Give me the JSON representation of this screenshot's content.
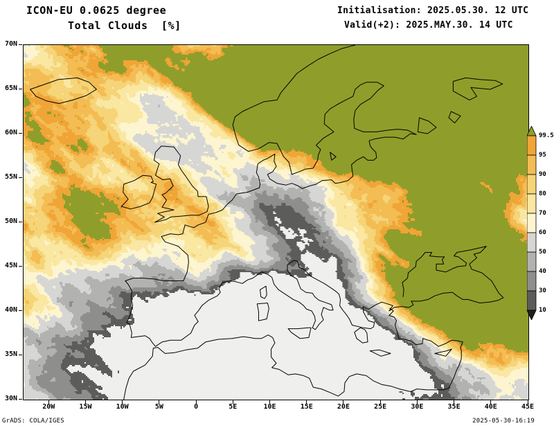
{
  "header": {
    "model_line": "ICON-EU 0.0625 degree",
    "product_line": "Total Clouds  [%]",
    "init_line": "Initialisation: 2025.05.30. 12 UTC",
    "valid_line": "Valid(+2): 2025.MAY.30. 14 UTC"
  },
  "map": {
    "lon_range": [
      -23.5,
      45
    ],
    "lat_range": [
      30,
      70
    ],
    "x_tick_labels": [
      "20W",
      "15W",
      "10W",
      "5W",
      "0",
      "5E",
      "10E",
      "15E",
      "20E",
      "25E",
      "30E",
      "35E",
      "40E",
      "45E"
    ],
    "y_tick_labels": [
      "70N",
      "65N",
      "60N",
      "55N",
      "50N",
      "45N",
      "40N",
      "35N",
      "30N"
    ]
  },
  "legend": {
    "tick_labels": [
      "99.5",
      "95",
      "90",
      "80",
      "70",
      "60",
      "50",
      "40",
      "30",
      "10"
    ],
    "colors": [
      "#8f9e2a",
      "#f0a537",
      "#f3bd54",
      "#f6d478",
      "#f9e7a2",
      "#fdf5d0",
      "#d6d6d4",
      "#b2b2b0",
      "#8e8e8c",
      "#5c5c5a",
      "#1f1f1d"
    ]
  },
  "field_palette": [
    "#efefed",
    "#5c5c5a",
    "#8e8e8c",
    "#b2b2b0",
    "#d6d6d4",
    "#fdf5d0",
    "#f9e7a2",
    "#f6d478",
    "#f3bd54",
    "#f0a537",
    "#8f9e2a"
  ],
  "footer": {
    "credit": "GrADS: COLA/IGES",
    "timestamp": "2025-05-30-16:19"
  }
}
